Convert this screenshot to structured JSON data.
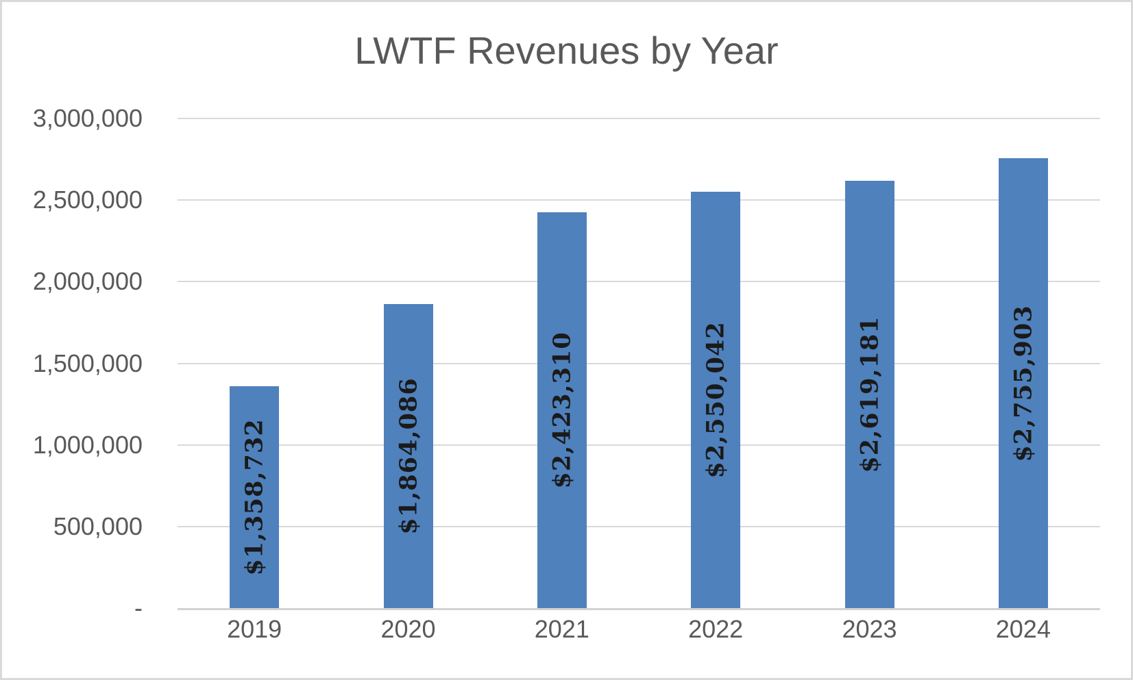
{
  "chart_data": {
    "type": "bar",
    "title": "LWTF Revenues by Year",
    "categories": [
      "2019",
      "2020",
      "2021",
      "2022",
      "2023",
      "2024"
    ],
    "values": [
      1358732,
      1864086,
      2423310,
      2550042,
      2619181,
      2755903
    ],
    "bar_labels": [
      "$1,358,732",
      "$1,864,086",
      "$2,423,310",
      "$2,550,042",
      "$2,619,181",
      "$2,755,903"
    ],
    "xlabel": "",
    "ylabel": "",
    "ylim": [
      0,
      3000000
    ],
    "ytick_interval": 500000,
    "ytick_labels": [
      "-",
      "500,000",
      "1,000,000",
      "1,500,000",
      "2,000,000",
      "2,500,000",
      "3,000,000"
    ],
    "grid": true,
    "legend": false,
    "bar_color": "#4f81bc",
    "bar_label_color": "#1a1a1a",
    "axis_text_color": "#595959",
    "gridline_color": "#d9d9d9",
    "title_color": "#595959"
  }
}
